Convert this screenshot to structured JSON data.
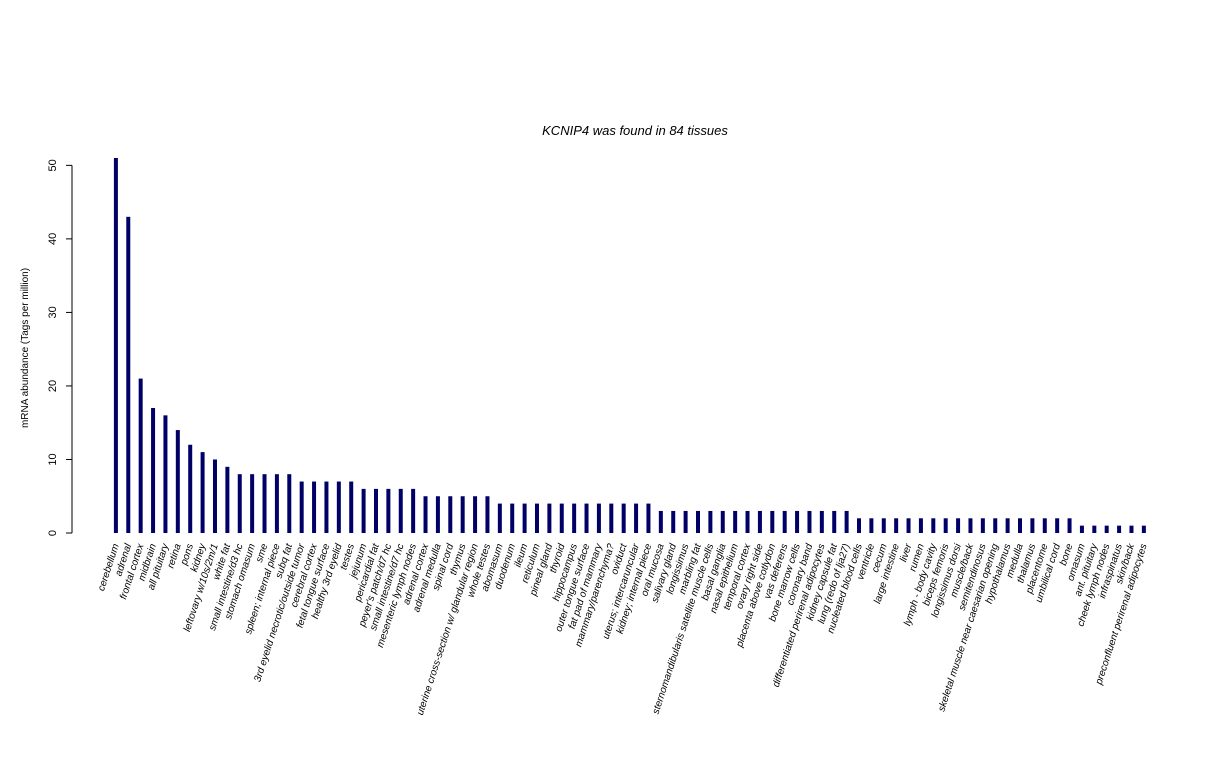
{
  "chart_data": {
    "type": "bar",
    "title": "KCNIP4  was found in  84  tissues",
    "xlabel": "",
    "ylabel": "mRNA abundance (Tags per million)",
    "ylim": [
      0,
      51
    ],
    "yticks": [
      0,
      10,
      20,
      30,
      40,
      50
    ],
    "grid": false,
    "bar_color": "#000066",
    "categories": [
      "cerebellum",
      "adrenal",
      "frontal cortex",
      "midbrain",
      "all pituitary",
      "retina",
      "pons",
      "kidney",
      "leftovary w/10s/2m/1",
      "white fat",
      "small intestine/d3 hc",
      "stomach omasum",
      "sme",
      "spleen; internal piece",
      "subq fat",
      "3rd eyelid necrotic/outside tumor",
      "cerebral cortex",
      "fetal tongue surface",
      "healthy 3rd eyelid",
      "testes",
      "jejunum",
      "pericardial fat",
      "peyer's patch/d7 hc",
      "small intestine/d7 hc",
      "mesenteric lymph nodes",
      "adrenal cortex",
      "adrenal medulla",
      "spinal cord",
      "thymus",
      "uterine cross-section w/ glandular region",
      "whole testes",
      "abomasum",
      "duodenum",
      "ileum",
      "reticulum",
      "pineal gland",
      "thyroid",
      "hippocampus",
      "outer tongue surface",
      "fat pad of mammary",
      "mammary/parenchyma?",
      "oviduct",
      "uterus; intercaruncular",
      "kidney; internal piece",
      "oral mucosa",
      "salivary gland",
      "longissimus",
      "marbling fat",
      "sternomandibularis satellite muscle cells",
      "basal ganglia",
      "nasal epithelium",
      "temporal cortex",
      "ovary right side",
      "placenta above cotlydon",
      "vas deferens",
      "bone marrow cells",
      "coronary band",
      "differentiated perirenal adipocytes",
      "kidney capsule fat",
      "lung (redo of lja27)",
      "nucleated blood cells",
      "ventricle",
      "cecum",
      "large intestine",
      "liver",
      "rumen",
      "lymph - body cavity",
      "biceps femoris",
      "longissimus dorsi",
      "muscle/back",
      "semitendinosus",
      "skeletal muscle near caesarian opening",
      "hypothalamus",
      "medulla",
      "thalamus",
      "placentome",
      "umbilical cord",
      "bone",
      "omasum",
      "ant. pituitary",
      "cheek lymph nodes",
      "infraspinatus",
      "skin/back",
      "preconfluent perirenal adipocytes"
    ],
    "values": [
      51,
      43,
      21,
      17,
      16,
      14,
      12,
      11,
      10,
      9,
      8,
      8,
      8,
      8,
      8,
      7,
      7,
      7,
      7,
      7,
      6,
      6,
      6,
      6,
      6,
      5,
      5,
      5,
      5,
      5,
      5,
      4,
      4,
      4,
      4,
      4,
      4,
      4,
      4,
      4,
      4,
      4,
      4,
      4,
      3,
      3,
      3,
      3,
      3,
      3,
      3,
      3,
      3,
      3,
      3,
      3,
      3,
      3,
      3,
      3,
      2,
      2,
      2,
      2,
      2,
      2,
      2,
      2,
      2,
      2,
      2,
      2,
      2,
      2,
      2,
      2,
      2,
      2,
      1,
      1,
      1,
      1,
      1,
      1
    ]
  }
}
